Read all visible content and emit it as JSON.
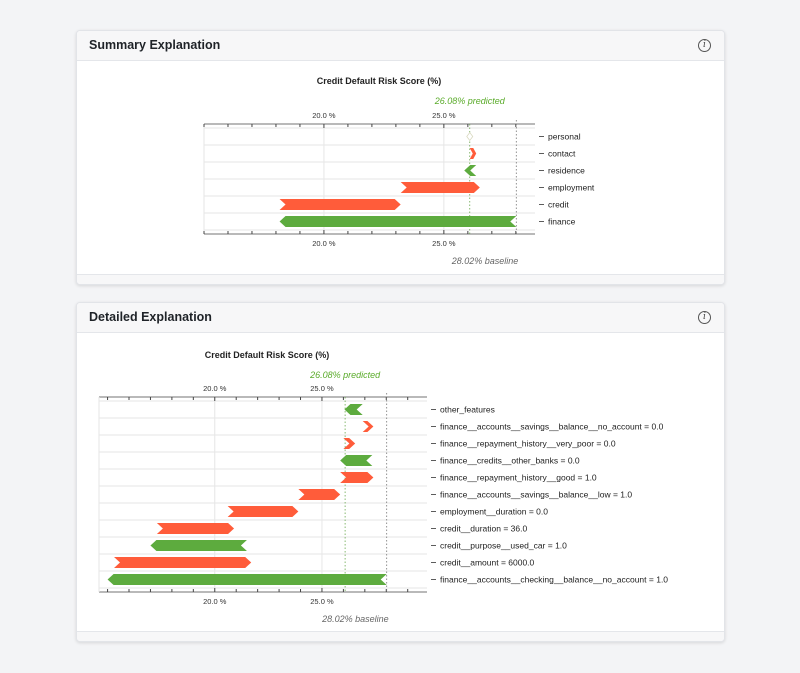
{
  "panels": [
    {
      "header": "Summary Explanation",
      "info_icon": "info-icon",
      "chart_data": {
        "type": "waterfall-bar",
        "title": "Credit Default Risk Score (%)",
        "xlim": [
          15.0,
          28.8
        ],
        "ticks": [
          20.0,
          25.0
        ],
        "tick_labels": [
          "20.0 %",
          "25.0 %"
        ],
        "predicted_value": 26.08,
        "predicted_label": "26.08% predicted",
        "baseline_value": 28.02,
        "baseline_label": "28.02% baseline",
        "categories": [
          "personal",
          "contact",
          "residence",
          "employment",
          "credit",
          "finance"
        ],
        "bars": [
          {
            "label": "personal",
            "from": 26.08,
            "to": 26.08
          },
          {
            "label": "contact",
            "from": 26.08,
            "to": 26.35
          },
          {
            "label": "residence",
            "from": 26.35,
            "to": 25.85
          },
          {
            "label": "employment",
            "from": 23.2,
            "to": 26.5
          },
          {
            "label": "credit",
            "from": 18.15,
            "to": 23.2
          },
          {
            "label": "finance",
            "from": 28.02,
            "to": 18.15
          }
        ]
      }
    },
    {
      "header": "Detailed Explanation",
      "info_icon": "info-icon",
      "chart_data": {
        "type": "waterfall-bar",
        "title": "Credit Default Risk Score (%)",
        "xlim": [
          14.6,
          29.9
        ],
        "ticks": [
          20.0,
          25.0
        ],
        "tick_labels": [
          "20.0 %",
          "25.0 %"
        ],
        "predicted_value": 26.08,
        "predicted_label": "26.08% predicted",
        "baseline_value": 28.02,
        "baseline_label": "28.02% baseline",
        "categories": [
          "other_features",
          "finance__accounts__savings__balance__no_account = 0.0",
          "finance__repayment_history__very_poor = 0.0",
          "finance__credits__other_banks = 0.0",
          "finance__repayment_history__good = 1.0",
          "finance__accounts__savings__balance__low = 1.0",
          "employment__duration = 0.0",
          "credit__duration = 36.0",
          "credit__purpose__used_car = 1.0",
          "credit__amount = 6000.0",
          "finance__accounts__checking__balance__no_account = 1.0"
        ],
        "bars": [
          {
            "label": "other_features",
            "from": 26.9,
            "to": 26.05
          },
          {
            "label": "finance__accounts__savings__balance__no_account = 0.0",
            "from": 26.9,
            "to": 27.4
          },
          {
            "label": "finance__repayment_history__very_poor = 0.0",
            "from": 26.0,
            "to": 26.55
          },
          {
            "label": "finance__credits__other_banks = 0.0",
            "from": 27.35,
            "to": 25.85
          },
          {
            "label": "finance__repayment_history__good = 1.0",
            "from": 25.85,
            "to": 27.4
          },
          {
            "label": "finance__accounts__savings__balance__low = 1.0",
            "from": 23.9,
            "to": 25.85
          },
          {
            "label": "employment__duration = 0.0",
            "from": 20.6,
            "to": 23.9
          },
          {
            "label": "credit__duration = 36.0",
            "from": 17.3,
            "to": 20.9
          },
          {
            "label": "credit__purpose__used_car = 1.0",
            "from": 21.5,
            "to": 17.0
          },
          {
            "label": "credit__amount = 6000.0",
            "from": 15.3,
            "to": 21.7
          },
          {
            "label": "finance__accounts__checking__balance__no_account = 1.0",
            "from": 28.02,
            "to": 15.0
          }
        ]
      }
    }
  ],
  "colors": {
    "increase": "#ff5c3a",
    "decrease": "#5dab3e",
    "predicted_text": "#5aab2a",
    "baseline_text": "#666666",
    "grid": "#e6e6e6",
    "axis": "#444444"
  }
}
